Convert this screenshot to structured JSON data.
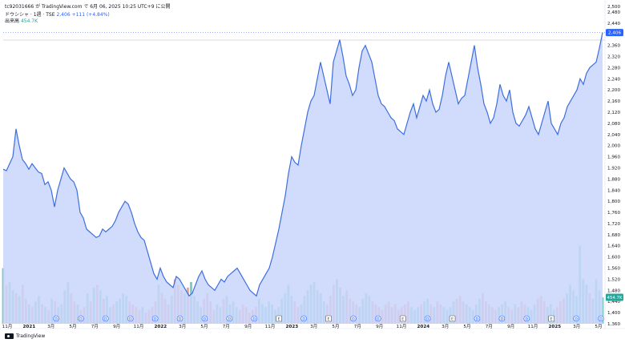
{
  "header": {
    "attribution": "tc92031666 が TradingView.com で 6月 06, 2025 10:25 UTC+9 に公開",
    "symbol": "ドウシシャ · 1週 · TSE",
    "price": "2,406",
    "change": "+111 (+4.84%)",
    "volume_label": "出来高",
    "volume_value": "454.7K"
  },
  "footer": {
    "brand": "TradingView"
  },
  "colors": {
    "line": "#3d6ee0",
    "fill": "#c9d6fb",
    "vol_up": "#7fcbc0",
    "vol_down": "#f0a3a0",
    "label_blue": "#2962ff",
    "label_green": "#26a69a"
  },
  "chart_data": {
    "type": "area",
    "y_ticks": [
      "2,500",
      "2,480",
      "2,440",
      "2,400",
      "2,360",
      "2,320",
      "2,280",
      "2,240",
      "2,200",
      "2,160",
      "2,120",
      "2,080",
      "2,040",
      "2,000",
      "1,960",
      "1,920",
      "1,880",
      "1,840",
      "1,800",
      "1,760",
      "1,720",
      "1,680",
      "1,640",
      "1,600",
      "1,560",
      "1,520",
      "1,480",
      "1,440",
      "1,400",
      "1,360"
    ],
    "ylim": [
      1360,
      2500
    ],
    "x_ticks": [
      {
        "label": "11月",
        "year": false
      },
      {
        "label": "2021",
        "year": true
      },
      {
        "label": "3月",
        "year": false
      },
      {
        "label": "5月",
        "year": false
      },
      {
        "label": "7月",
        "year": false
      },
      {
        "label": "9月",
        "year": false
      },
      {
        "label": "11月",
        "year": false
      },
      {
        "label": "2022",
        "year": true
      },
      {
        "label": "3月",
        "year": false
      },
      {
        "label": "5月",
        "year": false
      },
      {
        "label": "7月",
        "year": false
      },
      {
        "label": "9月",
        "year": false
      },
      {
        "label": "11月",
        "year": false
      },
      {
        "label": "2023",
        "year": true
      },
      {
        "label": "3月",
        "year": false
      },
      {
        "label": "5月",
        "year": false
      },
      {
        "label": "7月",
        "year": false
      },
      {
        "label": "9月",
        "year": false
      },
      {
        "label": "11月",
        "year": false
      },
      {
        "label": "2024",
        "year": true
      },
      {
        "label": "3月",
        "year": false
      },
      {
        "label": "5月",
        "year": false
      },
      {
        "label": "7月",
        "year": false
      },
      {
        "label": "9月",
        "year": false
      },
      {
        "label": "11月",
        "year": false
      },
      {
        "label": "2025",
        "year": true
      },
      {
        "label": "3月",
        "year": false
      },
      {
        "label": "5月",
        "year": false
      }
    ],
    "series": [
      {
        "values": [
          1915,
          1910,
          1935,
          1960,
          2060,
          2000,
          1950,
          1935,
          1915,
          1935,
          1920,
          1905,
          1900,
          1860,
          1870,
          1840,
          1780,
          1840,
          1880,
          1920,
          1900,
          1880,
          1870,
          1840,
          1760,
          1740,
          1700,
          1690,
          1680,
          1670,
          1675,
          1700,
          1690,
          1700,
          1710,
          1730,
          1760,
          1780,
          1800,
          1790,
          1760,
          1720,
          1690,
          1670,
          1660,
          1620,
          1580,
          1540,
          1520,
          1560,
          1530,
          1510,
          1500,
          1490,
          1530,
          1520,
          1500,
          1480,
          1460,
          1470,
          1500,
          1530,
          1550,
          1520,
          1500,
          1490,
          1480,
          1500,
          1520,
          1510,
          1530,
          1540,
          1550,
          1560,
          1540,
          1520,
          1500,
          1480,
          1470,
          1460,
          1500,
          1520,
          1540,
          1560,
          1600,
          1650,
          1700,
          1760,
          1820,
          1900,
          1960,
          1940,
          1930,
          2000,
          2060,
          2120,
          2160,
          2180,
          2240,
          2300,
          2250,
          2200,
          2150,
          2300,
          2340,
          2380,
          2320,
          2250,
          2220,
          2180,
          2200,
          2280,
          2340,
          2360,
          2330,
          2300,
          2240,
          2180,
          2150,
          2140,
          2120,
          2100,
          2090,
          2060,
          2050,
          2040,
          2080,
          2120,
          2150,
          2100,
          2140,
          2180,
          2160,
          2200,
          2150,
          2120,
          2130,
          2180,
          2250,
          2300,
          2250,
          2200,
          2150,
          2170,
          2180,
          2240,
          2300,
          2360,
          2280,
          2220,
          2150,
          2120,
          2080,
          2100,
          2150,
          2220,
          2180,
          2160,
          2200,
          2120,
          2080,
          2070,
          2090,
          2110,
          2140,
          2100,
          2060,
          2040,
          2080,
          2120,
          2160,
          2080,
          2060,
          2040,
          2080,
          2100,
          2140,
          2160,
          2180,
          2200,
          2240,
          2220,
          2260,
          2280,
          2290,
          2300,
          2350,
          2406
        ]
      }
    ],
    "volume_values": [
      1560,
      1500,
      1510,
      1480,
      1470,
      1460,
      1500,
      1450,
      1430,
      1420,
      1440,
      1460,
      1430,
      1420,
      1410,
      1450,
      1440,
      1420,
      1430,
      1480,
      1510,
      1470,
      1440,
      1430,
      1410,
      1420,
      1470,
      1440,
      1490,
      1500,
      1480,
      1450,
      1460,
      1420,
      1430,
      1440,
      1450,
      1470,
      1460,
      1440,
      1430,
      1420,
      1410,
      1420,
      1400,
      1410,
      1420,
      1440,
      1500,
      1470,
      1450,
      1430,
      1460,
      1520,
      1500,
      1480,
      1470,
      1490,
      1510,
      1460,
      1440,
      1420,
      1450,
      1470,
      1440,
      1410,
      1430,
      1420,
      1450,
      1460,
      1430,
      1440,
      1420,
      1410,
      1430,
      1420,
      1400,
      1410,
      1420,
      1450,
      1430,
      1420,
      1440,
      1430,
      1410,
      1420,
      1450,
      1470,
      1500,
      1460,
      1440,
      1420,
      1430,
      1460,
      1480,
      1500,
      1510,
      1480,
      1470,
      1440,
      1430,
      1460,
      1500,
      1520,
      1490,
      1460,
      1480,
      1450,
      1440,
      1430,
      1420,
      1450,
      1470,
      1460,
      1440,
      1430,
      1420,
      1410,
      1430,
      1440,
      1420,
      1430,
      1410,
      1420,
      1430,
      1440,
      1420,
      1410,
      1420,
      1430,
      1440,
      1450,
      1430,
      1420,
      1440,
      1430,
      1420,
      1410,
      1420,
      1440,
      1450,
      1460,
      1440,
      1430,
      1420,
      1410,
      1430,
      1450,
      1470,
      1440,
      1430,
      1420,
      1410,
      1420,
      1430,
      1440,
      1420,
      1410,
      1430,
      1420,
      1440,
      1430,
      1420,
      1410,
      1430,
      1450,
      1460,
      1440,
      1420,
      1430,
      1410,
      1420,
      1440,
      1450,
      1470,
      1500,
      1480,
      1460,
      1640,
      1520,
      1500,
      1470,
      1450,
      1520,
      1480,
      1455
    ],
    "volume_up": [
      1,
      0,
      1,
      1,
      0,
      1,
      0,
      0,
      1,
      0,
      1,
      1,
      0,
      1,
      0,
      1,
      0,
      1,
      1,
      1,
      1,
      0,
      0,
      1,
      0,
      0,
      1,
      0,
      1,
      0,
      1,
      0,
      1,
      1,
      0,
      1,
      1,
      1,
      1,
      0,
      0,
      0,
      0,
      1,
      0,
      0,
      0,
      0,
      1,
      0,
      0,
      0,
      1,
      0,
      0,
      0,
      1,
      0,
      1,
      1,
      1,
      1,
      0,
      0,
      0,
      0,
      1,
      1,
      0,
      1,
      1,
      1,
      1,
      0,
      0,
      0,
      0,
      0,
      0,
      1,
      1,
      1,
      1,
      1,
      1,
      1,
      1,
      1,
      1,
      1,
      0,
      0,
      1,
      1,
      1,
      1,
      1,
      1,
      1,
      1,
      0,
      0,
      0,
      1,
      1,
      1,
      0,
      0,
      0,
      0,
      1,
      1,
      1,
      1,
      0,
      0,
      0,
      0,
      0,
      0,
      0,
      0,
      0,
      0,
      0,
      0,
      1,
      1,
      1,
      0,
      1,
      1,
      0,
      1,
      0,
      0,
      1,
      1,
      1,
      1,
      0,
      0,
      0,
      1,
      1,
      1,
      1,
      1,
      0,
      0,
      0,
      0,
      0,
      1,
      1,
      1,
      0,
      0,
      1,
      0,
      0,
      0,
      1,
      1,
      1,
      0,
      0,
      0,
      1,
      1,
      1,
      0,
      0,
      0,
      1,
      1,
      1,
      1,
      1,
      1,
      1,
      0,
      1,
      1,
      1,
      1,
      1,
      1
    ],
    "markers": [
      "D",
      "D",
      "D",
      "D",
      "D",
      "D",
      "D",
      "D",
      "D",
      "E",
      "D",
      "E",
      "D",
      "D",
      "E",
      "D",
      "E",
      "D",
      "D",
      "D",
      "E",
      "D",
      "D"
    ],
    "volume_ylim": [
      1360,
      1720
    ]
  }
}
